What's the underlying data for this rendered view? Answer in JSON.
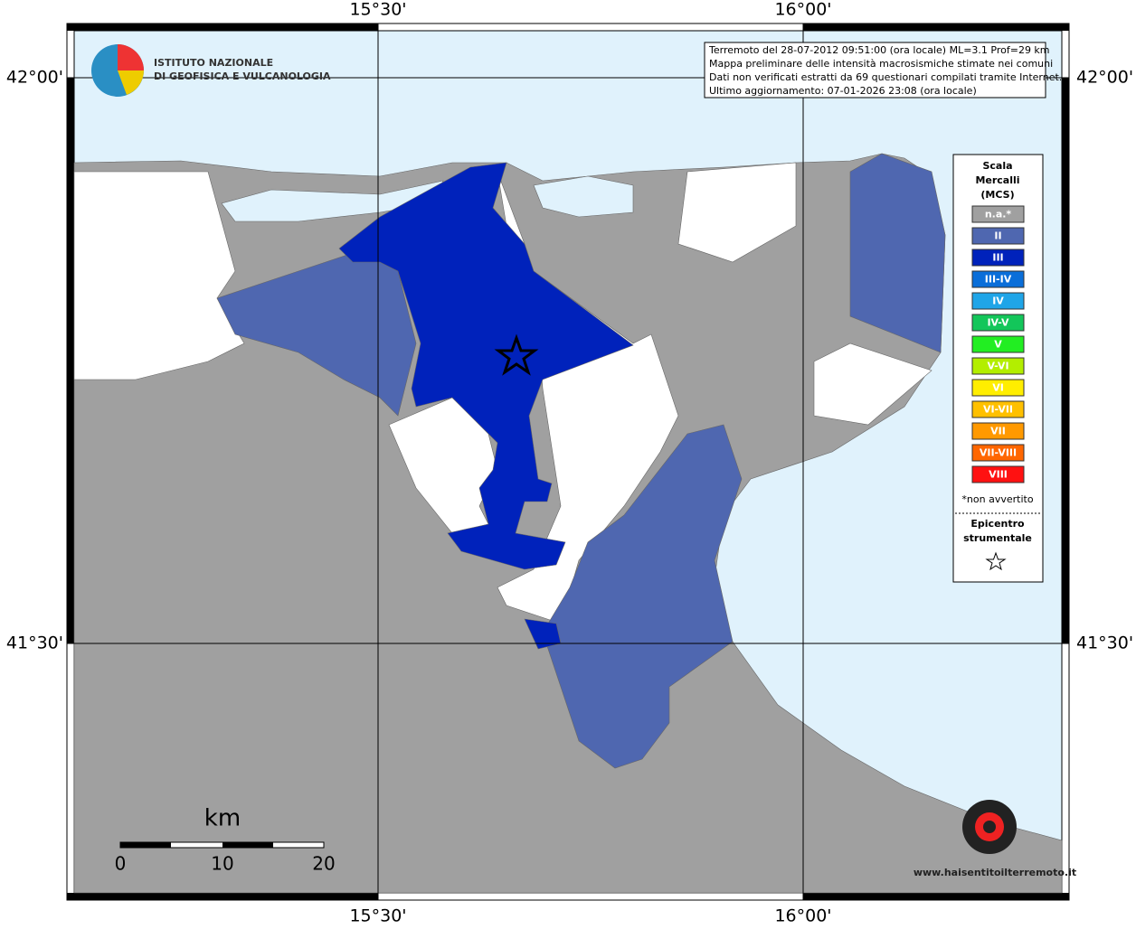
{
  "header": {
    "institute": [
      "ISTITUTO NAZIONALE",
      "DI GEOFISICA E VULCANOLOGIA"
    ]
  },
  "info": [
    "Terremoto del 28-07-2012 09:51:00 (ora locale) ML=3.1 Prof=29 km",
    "Mappa preliminare delle intensità macrosismiche stimate nei comuni",
    "Dati non verificati estratti da 69 questionari compilati tramite Internet.",
    "Ultimo aggiornamento: 07-01-2026 23:08 (ora locale)"
  ],
  "axes": {
    "top": [
      "15°30'",
      "16°00'"
    ],
    "bottom": [
      "15°30'",
      "16°00'"
    ],
    "left": [
      "42°00'",
      "41°30'"
    ],
    "right": [
      "42°00'",
      "41°30'"
    ]
  },
  "legend": {
    "title": [
      "Scala",
      "Mercalli",
      "(MCS)"
    ],
    "items": [
      {
        "label": "n.a.*",
        "color": "#a0a0a0"
      },
      {
        "label": "II",
        "color": "#4f67b0"
      },
      {
        "label": "III",
        "color": "#0022bb"
      },
      {
        "label": "III-IV",
        "color": "#0a6ed9"
      },
      {
        "label": "IV",
        "color": "#1fa5e8"
      },
      {
        "label": "IV-V",
        "color": "#13c65a"
      },
      {
        "label": "V",
        "color": "#22ee22"
      },
      {
        "label": "V-VI",
        "color": "#b3ee00"
      },
      {
        "label": "VI",
        "color": "#ffee00"
      },
      {
        "label": "VI-VII",
        "color": "#ffc000"
      },
      {
        "label": "VII",
        "color": "#ff9900"
      },
      {
        "label": "VII-VIII",
        "color": "#ff6600"
      },
      {
        "label": "VIII",
        "color": "#ff1111"
      }
    ],
    "note": "*non avvertito",
    "epicenter": [
      "Epicentro",
      "strumentale"
    ]
  },
  "scale": {
    "unit": "km",
    "labels": [
      "0",
      "10",
      "20"
    ]
  },
  "watermark": "www.haisentitoilterremoto.it"
}
